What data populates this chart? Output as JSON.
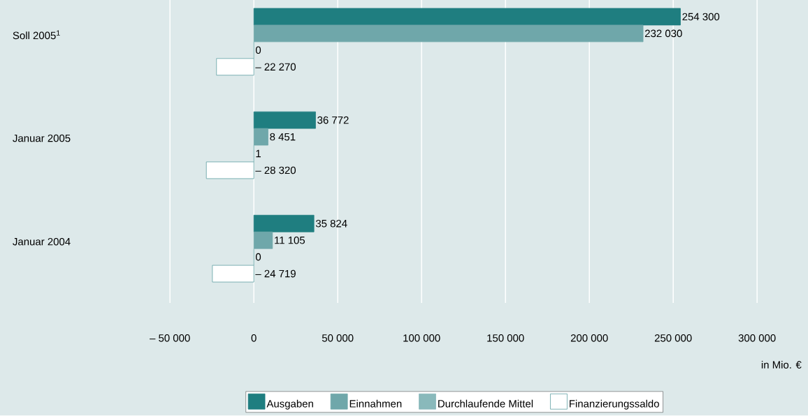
{
  "chart_data": {
    "type": "bar",
    "orientation": "horizontal",
    "categories": [
      "Soll 2005$^{1}$",
      "Januar 2005",
      "Januar 2004"
    ],
    "series": [
      {
        "name": "Ausgaben",
        "color": "#1f7e80",
        "values": [
          254300,
          36772,
          35824
        ],
        "value_labels": [
          "254 300",
          "36 772",
          "35 824"
        ]
      },
      {
        "name": "Einnahmen",
        "color": "#6fa7aa",
        "values": [
          232030,
          8451,
          11105
        ],
        "value_labels": [
          "232 030",
          "8 451",
          "11 105"
        ]
      },
      {
        "name": "Durchlaufende Mittel",
        "color": "#89b9bb",
        "values": [
          0,
          1,
          0
        ],
        "value_labels": [
          "0",
          "1",
          "0"
        ]
      },
      {
        "name": "Finanzierungssaldo",
        "color": "#ffffff",
        "values": [
          -22270,
          -28320,
          -24719
        ],
        "value_labels": [
          "– 22 270",
          "– 28 320",
          "– 24 719"
        ]
      }
    ],
    "xlim": [
      -50000,
      300000
    ],
    "xticks": [
      {
        "value": -50000,
        "label": "– 50 000"
      },
      {
        "value": 0,
        "label": "0"
      },
      {
        "value": 50000,
        "label": "50 000"
      },
      {
        "value": 100000,
        "label": "100 000"
      },
      {
        "value": 150000,
        "label": "150 000"
      },
      {
        "value": 200000,
        "label": "200 000"
      },
      {
        "value": 250000,
        "label": "250 000"
      },
      {
        "value": 300000,
        "label": "300 000"
      }
    ],
    "xlabel": "in Mio. €",
    "grid": "x",
    "legend": "bottom"
  }
}
